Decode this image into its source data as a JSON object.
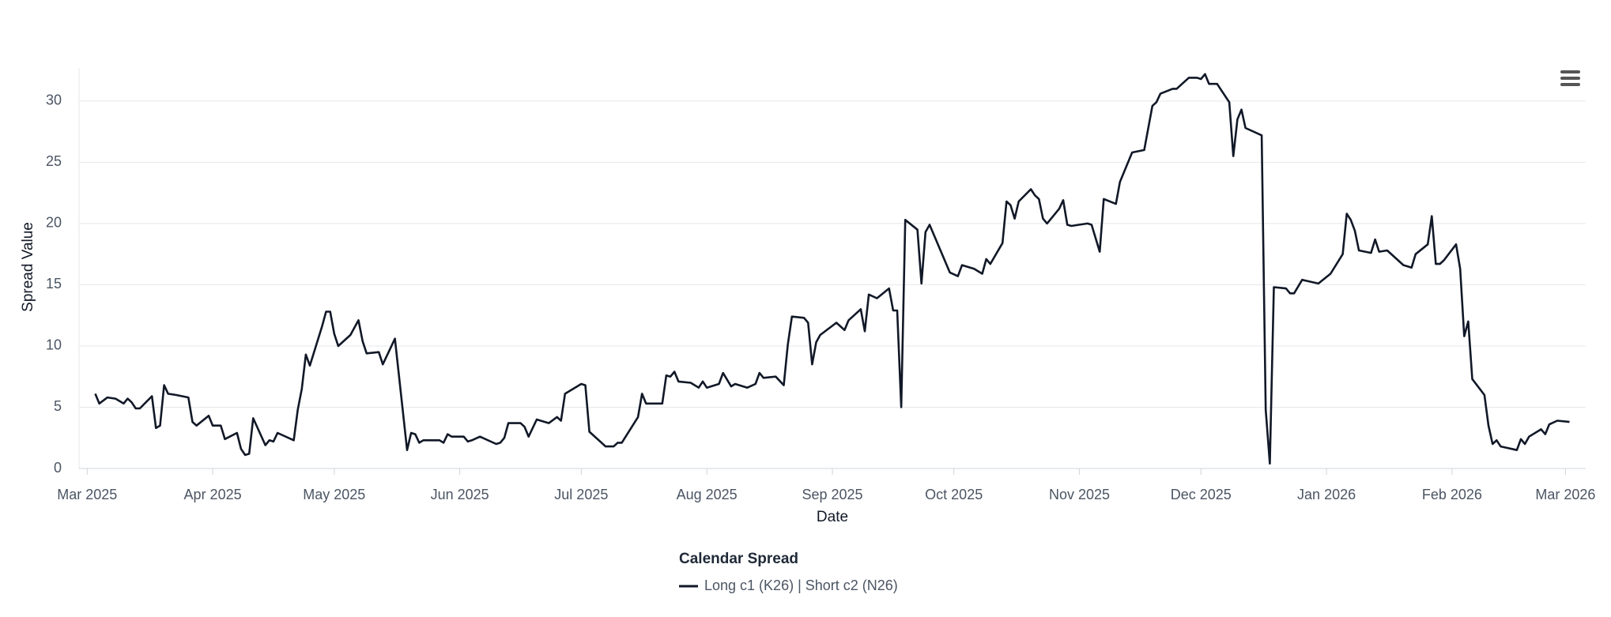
{
  "chart_data": {
    "type": "line",
    "x_label": "Date",
    "y_label": "Spread Value",
    "legend_title": "Calendar Spread",
    "x": [
      "2025-03-03",
      "2025-03-04",
      "2025-03-06",
      "2025-03-08",
      "2025-03-10",
      "2025-03-11",
      "2025-03-12",
      "2025-03-13",
      "2025-03-14",
      "2025-03-17",
      "2025-03-18",
      "2025-03-19",
      "2025-03-20",
      "2025-03-21",
      "2025-03-23",
      "2025-03-26",
      "2025-03-27",
      "2025-03-28",
      "2025-03-31",
      "2025-04-01",
      "2025-04-03",
      "2025-04-04",
      "2025-04-07",
      "2025-04-08",
      "2025-04-09",
      "2025-04-10",
      "2025-04-11",
      "2025-04-14",
      "2025-04-15",
      "2025-04-16",
      "2025-04-17",
      "2025-04-21",
      "2025-04-22",
      "2025-04-23",
      "2025-04-24",
      "2025-04-25",
      "2025-04-28",
      "2025-04-29",
      "2025-04-30",
      "2025-05-01",
      "2025-05-02",
      "2025-05-05",
      "2025-05-07",
      "2025-05-08",
      "2025-05-09",
      "2025-05-12",
      "2025-05-13",
      "2025-05-16",
      "2025-05-19",
      "2025-05-20",
      "2025-05-21",
      "2025-05-22",
      "2025-05-23",
      "2025-05-27",
      "2025-05-28",
      "2025-05-29",
      "2025-05-30",
      "2025-06-02",
      "2025-06-03",
      "2025-06-04",
      "2025-06-06",
      "2025-06-10",
      "2025-06-11",
      "2025-06-12",
      "2025-06-13",
      "2025-06-16",
      "2025-06-17",
      "2025-06-18",
      "2025-06-20",
      "2025-06-23",
      "2025-06-25",
      "2025-06-26",
      "2025-06-27",
      "2025-06-30",
      "2025-07-01",
      "2025-07-02",
      "2025-07-03",
      "2025-07-07",
      "2025-07-09",
      "2025-07-10",
      "2025-07-11",
      "2025-07-15",
      "2025-07-16",
      "2025-07-17",
      "2025-07-21",
      "2025-07-22",
      "2025-07-23",
      "2025-07-24",
      "2025-07-25",
      "2025-07-28",
      "2025-07-30",
      "2025-07-31",
      "2025-08-01",
      "2025-08-04",
      "2025-08-05",
      "2025-08-07",
      "2025-08-08",
      "2025-08-11",
      "2025-08-13",
      "2025-08-14",
      "2025-08-15",
      "2025-08-18",
      "2025-08-20",
      "2025-08-21",
      "2025-08-22",
      "2025-08-25",
      "2025-08-26",
      "2025-08-27",
      "2025-08-28",
      "2025-08-29",
      "2025-09-02",
      "2025-09-04",
      "2025-09-05",
      "2025-09-08",
      "2025-09-09",
      "2025-09-10",
      "2025-09-12",
      "2025-09-15",
      "2025-09-16",
      "2025-09-17",
      "2025-09-18",
      "2025-09-19",
      "2025-09-22",
      "2025-09-23",
      "2025-09-24",
      "2025-09-25",
      "2025-09-30",
      "2025-10-02",
      "2025-10-03",
      "2025-10-06",
      "2025-10-08",
      "2025-10-09",
      "2025-10-10",
      "2025-10-13",
      "2025-10-14",
      "2025-10-15",
      "2025-10-16",
      "2025-10-17",
      "2025-10-20",
      "2025-10-21",
      "2025-10-22",
      "2025-10-23",
      "2025-10-24",
      "2025-10-27",
      "2025-10-28",
      "2025-10-29",
      "2025-10-30",
      "2025-11-03",
      "2025-11-04",
      "2025-11-06",
      "2025-11-07",
      "2025-11-10",
      "2025-11-11",
      "2025-11-14",
      "2025-11-17",
      "2025-11-19",
      "2025-11-20",
      "2025-11-21",
      "2025-11-24",
      "2025-11-25",
      "2025-11-28",
      "2025-11-30",
      "2025-12-01",
      "2025-12-02",
      "2025-12-03",
      "2025-12-05",
      "2025-12-08",
      "2025-12-09",
      "2025-12-10",
      "2025-12-11",
      "2025-12-12",
      "2025-12-16",
      "2025-12-17",
      "2025-12-18",
      "2025-12-19",
      "2025-12-22",
      "2025-12-23",
      "2025-12-24",
      "2025-12-26",
      "2025-12-30",
      "2026-01-02",
      "2026-01-05",
      "2026-01-06",
      "2026-01-07",
      "2026-01-08",
      "2026-01-09",
      "2026-01-12",
      "2026-01-13",
      "2026-01-14",
      "2026-01-16",
      "2026-01-20",
      "2026-01-22",
      "2026-01-23",
      "2026-01-26",
      "2026-01-27",
      "2026-01-28",
      "2026-01-29",
      "2026-01-30",
      "2026-02-02",
      "2026-02-03",
      "2026-02-04",
      "2026-02-05",
      "2026-02-06",
      "2026-02-09",
      "2026-02-10",
      "2026-02-11",
      "2026-02-12",
      "2026-02-13",
      "2026-02-17",
      "2026-02-18",
      "2026-02-19",
      "2026-02-20",
      "2026-02-23",
      "2026-02-24",
      "2026-02-25",
      "2026-02-27",
      "2026-03-02"
    ],
    "series": [
      {
        "name": "Long c1 (K26) | Short c2 (N26)",
        "color": "#111827",
        "values": [
          6.1,
          5.3,
          5.8,
          5.7,
          5.3,
          5.7,
          5.4,
          4.9,
          4.9,
          5.9,
          3.3,
          3.5,
          6.8,
          6.1,
          6.0,
          5.8,
          3.8,
          3.5,
          4.3,
          3.5,
          3.5,
          2.4,
          2.9,
          1.6,
          1.1,
          1.2,
          4.1,
          1.9,
          2.3,
          2.2,
          2.9,
          2.3,
          4.8,
          6.5,
          9.3,
          8.4,
          11.6,
          12.8,
          12.8,
          11.0,
          10.0,
          10.9,
          12.1,
          10.4,
          9.4,
          9.5,
          8.5,
          10.6,
          1.5,
          2.9,
          2.8,
          2.1,
          2.3,
          2.3,
          2.1,
          2.8,
          2.6,
          2.6,
          2.2,
          2.3,
          2.6,
          2.0,
          2.1,
          2.5,
          3.7,
          3.7,
          3.4,
          2.6,
          4.0,
          3.7,
          4.2,
          3.9,
          6.1,
          6.7,
          6.9,
          6.8,
          3.0,
          1.8,
          1.8,
          2.1,
          2.1,
          4.2,
          6.1,
          5.3,
          5.3,
          7.6,
          7.5,
          7.9,
          7.1,
          7.0,
          6.6,
          7.1,
          6.6,
          6.9,
          7.8,
          6.7,
          6.9,
          6.6,
          6.9,
          7.8,
          7.4,
          7.5,
          6.8,
          10.1,
          12.4,
          12.3,
          11.9,
          8.5,
          10.3,
          10.9,
          11.9,
          11.3,
          12.1,
          13.0,
          11.2,
          14.2,
          13.9,
          14.7,
          12.9,
          12.9,
          5.0,
          20.3,
          19.5,
          15.1,
          19.3,
          19.9,
          16.0,
          15.7,
          16.6,
          16.3,
          15.9,
          17.1,
          16.7,
          18.4,
          21.8,
          21.5,
          20.4,
          21.8,
          22.8,
          22.3,
          22.0,
          20.4,
          20.0,
          21.2,
          21.9,
          19.9,
          19.8,
          20.0,
          19.9,
          17.7,
          22.0,
          21.6,
          23.4,
          25.8,
          26.0,
          29.6,
          29.9,
          30.6,
          31.0,
          31.0,
          31.9,
          31.9,
          31.8,
          32.2,
          31.4,
          31.4,
          29.9,
          25.5,
          28.5,
          29.3,
          27.8,
          27.2,
          4.8,
          0.4,
          14.8,
          14.7,
          14.3,
          14.3,
          15.4,
          15.1,
          15.9,
          17.5,
          20.8,
          20.3,
          19.4,
          17.8,
          17.6,
          18.7,
          17.7,
          17.8,
          16.6,
          16.4,
          17.5,
          18.3,
          20.6,
          16.7,
          16.7,
          17.0,
          18.3,
          16.3,
          10.8,
          12.0,
          7.3,
          6.0,
          3.5,
          2.0,
          2.3,
          1.8,
          1.5,
          2.4,
          2.0,
          2.6,
          3.2,
          2.8,
          3.6,
          3.9,
          3.8
        ]
      }
    ],
    "xlim": [
      "2025-02-27",
      "2026-03-06"
    ],
    "xticks": [
      {
        "value": "2025-03-01",
        "label": "Mar 2025"
      },
      {
        "value": "2025-04-01",
        "label": "Apr 2025"
      },
      {
        "value": "2025-05-01",
        "label": "May 2025"
      },
      {
        "value": "2025-06-01",
        "label": "Jun 2025"
      },
      {
        "value": "2025-07-01",
        "label": "Jul 2025"
      },
      {
        "value": "2025-08-01",
        "label": "Aug 2025"
      },
      {
        "value": "2025-09-01",
        "label": "Sep 2025"
      },
      {
        "value": "2025-10-01",
        "label": "Oct 2025"
      },
      {
        "value": "2025-11-01",
        "label": "Nov 2025"
      },
      {
        "value": "2025-12-01",
        "label": "Dec 2025"
      },
      {
        "value": "2026-01-01",
        "label": "Jan 2026"
      },
      {
        "value": "2026-02-01",
        "label": "Feb 2026"
      },
      {
        "value": "2026-03-01",
        "label": "Mar 2026"
      }
    ],
    "ylim": [
      0,
      32.7
    ],
    "yticks": [
      0,
      5,
      10,
      15,
      20,
      25,
      30
    ],
    "grid": true
  }
}
